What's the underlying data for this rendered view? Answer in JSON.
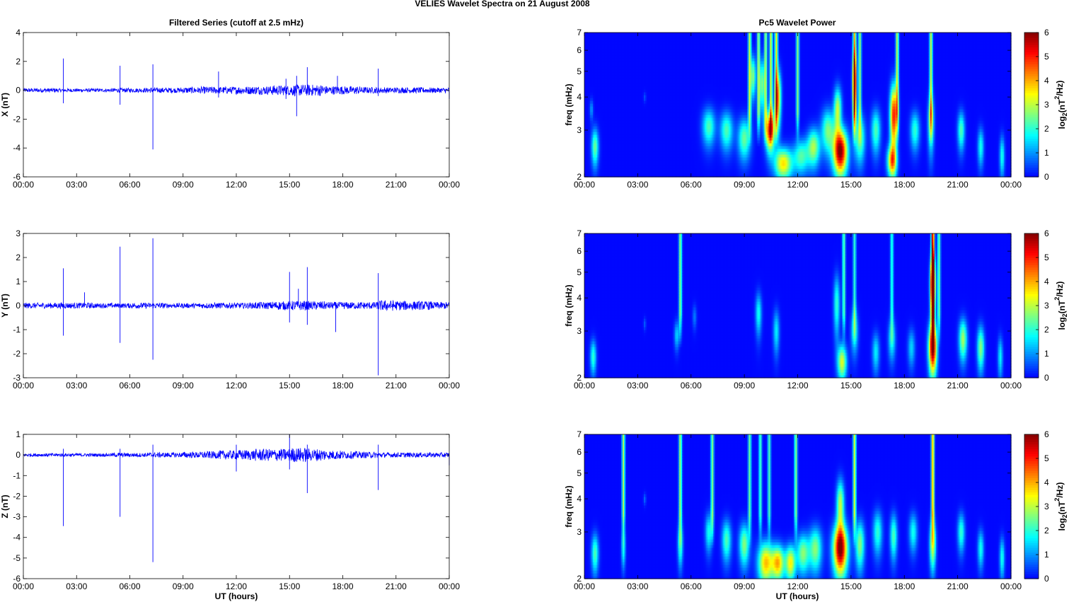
{
  "figure": {
    "title": "VELIES Wavelet Spectra on 21 August    2008",
    "left_title": "Filtered Series (cutoff at 2.5 mHz)",
    "right_title": "Pc5 Wavelet Power",
    "xlabel": "UT (hours)",
    "right_ylabel": "freq (mHz)",
    "colorbar_label": "log2(nT^2/Hz)",
    "colorbar_label_parts": {
      "pre": "log",
      "sub": "2",
      "mid": "(nT",
      "sup": "2",
      "post": "/Hz)"
    },
    "time_ticks": [
      "00:00",
      "03:00",
      "06:00",
      "09:00",
      "12:00",
      "15:00",
      "18:00",
      "21:00",
      "00:00"
    ],
    "freq_ticks": [
      "2",
      "3",
      "4",
      "5",
      "6",
      "7"
    ],
    "colorbar_ticks": [
      "0",
      "1",
      "2",
      "3",
      "4",
      "5",
      "6"
    ],
    "colors": {
      "line": "#0000ff",
      "background_power": "#00008f"
    }
  },
  "chart_data": [
    {
      "type": "line",
      "name": "X",
      "ylabel": "X (nT)",
      "xlim": [
        0,
        24
      ],
      "ylim": [
        -6,
        4
      ],
      "yticks": [
        "-6",
        "-4",
        "-2",
        "0",
        "2",
        "4"
      ],
      "background_amplitude": [
        0.15,
        0.15,
        0.12,
        0.12,
        0.12,
        0.15,
        0.15,
        0.18,
        0.18,
        0.22,
        0.25,
        0.25,
        0.28,
        0.3,
        0.35,
        0.4,
        0.4,
        0.3,
        0.28,
        0.22,
        0.2,
        0.2,
        0.2,
        0.18,
        0.2
      ],
      "spikes": [
        {
          "t": 2.25,
          "y": 2.2
        },
        {
          "t": 2.25,
          "y": -0.9
        },
        {
          "t": 5.45,
          "y": 1.7
        },
        {
          "t": 5.45,
          "y": -1.0
        },
        {
          "t": 7.3,
          "y": 1.8
        },
        {
          "t": 7.3,
          "y": -4.1
        },
        {
          "t": 11.0,
          "y": 1.3
        },
        {
          "t": 11.0,
          "y": -0.5
        },
        {
          "t": 14.8,
          "y": 0.8
        },
        {
          "t": 14.8,
          "y": -0.6
        },
        {
          "t": 15.4,
          "y": 1.0
        },
        {
          "t": 15.4,
          "y": -1.8
        },
        {
          "t": 16.0,
          "y": 1.6
        },
        {
          "t": 17.7,
          "y": 1.0
        },
        {
          "t": 20.0,
          "y": 1.5
        },
        {
          "t": 20.0,
          "y": -0.4
        },
        {
          "t": 24.0,
          "y": -0.6
        }
      ]
    },
    {
      "type": "line",
      "name": "Y",
      "ylabel": "Y (nT)",
      "xlim": [
        0,
        24
      ],
      "ylim": [
        -3,
        3
      ],
      "yticks": [
        "-3",
        "-2",
        "-1",
        "0",
        "1",
        "2",
        "3"
      ],
      "background_amplitude": [
        0.12,
        0.12,
        0.12,
        0.12,
        0.1,
        0.1,
        0.12,
        0.12,
        0.1,
        0.1,
        0.12,
        0.12,
        0.12,
        0.15,
        0.18,
        0.2,
        0.18,
        0.15,
        0.15,
        0.15,
        0.22,
        0.2,
        0.18,
        0.15,
        0.15
      ],
      "spikes": [
        {
          "t": 2.25,
          "y": 1.55
        },
        {
          "t": 2.25,
          "y": -1.25
        },
        {
          "t": 3.45,
          "y": 0.55
        },
        {
          "t": 5.45,
          "y": 2.45
        },
        {
          "t": 5.45,
          "y": -1.55
        },
        {
          "t": 7.3,
          "y": 2.8
        },
        {
          "t": 7.3,
          "y": -2.25
        },
        {
          "t": 15.0,
          "y": 1.4
        },
        {
          "t": 15.0,
          "y": -0.7
        },
        {
          "t": 15.5,
          "y": 0.7
        },
        {
          "t": 16.0,
          "y": 1.6
        },
        {
          "t": 16.0,
          "y": -0.8
        },
        {
          "t": 17.6,
          "y": -1.1
        },
        {
          "t": 20.0,
          "y": 1.35
        },
        {
          "t": 20.0,
          "y": -2.9
        }
      ]
    },
    {
      "type": "line",
      "name": "Z",
      "ylabel": "Z (nT)",
      "xlim": [
        0,
        24
      ],
      "ylim": [
        -6,
        1
      ],
      "yticks": [
        "-6",
        "-5",
        "-4",
        "-3",
        "-2",
        "-1",
        "0",
        "1"
      ],
      "background_amplitude": [
        0.08,
        0.08,
        0.08,
        0.08,
        0.08,
        0.1,
        0.1,
        0.12,
        0.12,
        0.15,
        0.18,
        0.22,
        0.25,
        0.3,
        0.3,
        0.35,
        0.3,
        0.22,
        0.18,
        0.15,
        0.12,
        0.12,
        0.12,
        0.12,
        0.12
      ],
      "spikes": [
        {
          "t": 2.25,
          "y": 0.3
        },
        {
          "t": 2.25,
          "y": -3.45
        },
        {
          "t": 5.45,
          "y": 0.3
        },
        {
          "t": 5.45,
          "y": -3.0
        },
        {
          "t": 7.3,
          "y": 0.5
        },
        {
          "t": 7.3,
          "y": -5.2
        },
        {
          "t": 12.0,
          "y": 0.5
        },
        {
          "t": 12.0,
          "y": -0.8
        },
        {
          "t": 15.0,
          "y": 1.0
        },
        {
          "t": 15.0,
          "y": -0.7
        },
        {
          "t": 16.0,
          "y": 0.5
        },
        {
          "t": 16.0,
          "y": -1.85
        },
        {
          "t": 20.0,
          "y": 0.5
        },
        {
          "t": 20.0,
          "y": -1.7
        },
        {
          "t": 24.0,
          "y": -0.5
        }
      ]
    },
    {
      "type": "heatmap",
      "name": "X wavelet power",
      "xlim": [
        0,
        24
      ],
      "ylim_mhz": [
        2,
        7
      ],
      "log_frequency_axis": true,
      "zlim": [
        0,
        6
      ],
      "colormap": "jet",
      "blobs": [
        {
          "t": 0.6,
          "f": 2.6,
          "w": 0.14,
          "h": 0.3,
          "a": 2.4
        },
        {
          "t": 0.4,
          "f": 3.6,
          "w": 0.07,
          "h": 0.22,
          "a": 1.0
        },
        {
          "t": 3.4,
          "f": 4.0,
          "w": 0.05,
          "h": 0.12,
          "a": 0.5
        },
        {
          "t": 7.0,
          "f": 3.1,
          "w": 0.25,
          "h": 0.35,
          "a": 2.2
        },
        {
          "t": 8.0,
          "f": 3.0,
          "w": 0.25,
          "h": 0.35,
          "a": 2.2
        },
        {
          "t": 9.0,
          "f": 2.8,
          "w": 0.25,
          "h": 0.35,
          "a": 2.4
        },
        {
          "t": 9.5,
          "f": 4.8,
          "w": 0.1,
          "h": 0.6,
          "a": 2.6
        },
        {
          "t": 10.0,
          "f": 4.5,
          "w": 0.1,
          "h": 0.7,
          "a": 2.5
        },
        {
          "t": 10.45,
          "f": 3.0,
          "w": 0.18,
          "h": 0.35,
          "a": 5.2
        },
        {
          "t": 10.9,
          "f": 4.0,
          "w": 0.12,
          "h": 0.7,
          "a": 3.5
        },
        {
          "t": 11.2,
          "f": 2.25,
          "w": 0.35,
          "h": 0.22,
          "a": 3.6
        },
        {
          "t": 12.2,
          "f": 2.4,
          "w": 0.3,
          "h": 0.25,
          "a": 2.2
        },
        {
          "t": 12.9,
          "f": 2.6,
          "w": 0.25,
          "h": 0.3,
          "a": 2.8
        },
        {
          "t": 13.7,
          "f": 3.0,
          "w": 0.25,
          "h": 0.4,
          "a": 2.5
        },
        {
          "t": 14.4,
          "f": 2.5,
          "w": 0.28,
          "h": 0.35,
          "a": 6.0
        },
        {
          "t": 14.25,
          "f": 3.6,
          "w": 0.15,
          "h": 0.5,
          "a": 3.0
        },
        {
          "t": 15.2,
          "f": 4.6,
          "w": 0.08,
          "h": 0.9,
          "a": 3.8
        },
        {
          "t": 15.5,
          "f": 2.8,
          "w": 0.2,
          "h": 0.4,
          "a": 2.5
        },
        {
          "t": 16.4,
          "f": 3.0,
          "w": 0.18,
          "h": 0.4,
          "a": 2.2
        },
        {
          "t": 17.4,
          "f": 3.4,
          "w": 0.14,
          "h": 0.7,
          "a": 5.0
        },
        {
          "t": 17.3,
          "f": 2.3,
          "w": 0.18,
          "h": 0.22,
          "a": 3.8
        },
        {
          "t": 18.6,
          "f": 3.0,
          "w": 0.18,
          "h": 0.35,
          "a": 2.0
        },
        {
          "t": 19.5,
          "f": 3.2,
          "w": 0.12,
          "h": 0.55,
          "a": 2.4
        },
        {
          "t": 21.2,
          "f": 3.0,
          "w": 0.14,
          "h": 0.35,
          "a": 2.2
        },
        {
          "t": 22.3,
          "f": 2.6,
          "w": 0.12,
          "h": 0.3,
          "a": 1.8
        },
        {
          "t": 23.5,
          "f": 2.4,
          "w": 0.1,
          "h": 0.3,
          "a": 1.8
        }
      ],
      "streaks": [
        {
          "t": 9.3,
          "a": 3.0
        },
        {
          "t": 9.8,
          "a": 2.8
        },
        {
          "t": 10.2,
          "a": 2.8
        },
        {
          "t": 10.5,
          "a": 3.2
        },
        {
          "t": 10.8,
          "a": 3.5
        },
        {
          "t": 12.0,
          "a": 2.6
        },
        {
          "t": 15.2,
          "a": 3.8
        },
        {
          "t": 15.5,
          "a": 2.6
        },
        {
          "t": 17.6,
          "a": 3.0
        },
        {
          "t": 19.5,
          "a": 3.0
        }
      ]
    },
    {
      "type": "heatmap",
      "name": "Y wavelet power",
      "xlim": [
        0,
        24
      ],
      "ylim_mhz": [
        2,
        7
      ],
      "log_frequency_axis": true,
      "zlim": [
        0,
        6
      ],
      "colormap": "jet",
      "blobs": [
        {
          "t": 0.5,
          "f": 2.4,
          "w": 0.12,
          "h": 0.25,
          "a": 2.0
        },
        {
          "t": 3.4,
          "f": 3.2,
          "w": 0.05,
          "h": 0.12,
          "a": 0.6
        },
        {
          "t": 5.2,
          "f": 2.9,
          "w": 0.1,
          "h": 0.25,
          "a": 1.4
        },
        {
          "t": 6.2,
          "f": 3.4,
          "w": 0.08,
          "h": 0.25,
          "a": 0.8
        },
        {
          "t": 9.8,
          "f": 3.5,
          "w": 0.12,
          "h": 0.45,
          "a": 1.8
        },
        {
          "t": 10.8,
          "f": 3.0,
          "w": 0.12,
          "h": 0.4,
          "a": 1.6
        },
        {
          "t": 14.2,
          "f": 3.8,
          "w": 0.12,
          "h": 0.7,
          "a": 2.0
        },
        {
          "t": 14.5,
          "f": 2.3,
          "w": 0.18,
          "h": 0.25,
          "a": 3.2
        },
        {
          "t": 15.2,
          "f": 3.0,
          "w": 0.14,
          "h": 0.4,
          "a": 1.8
        },
        {
          "t": 16.4,
          "f": 2.5,
          "w": 0.14,
          "h": 0.3,
          "a": 1.6
        },
        {
          "t": 17.3,
          "f": 2.8,
          "w": 0.14,
          "h": 0.35,
          "a": 1.8
        },
        {
          "t": 18.4,
          "f": 2.6,
          "w": 0.14,
          "h": 0.3,
          "a": 1.4
        },
        {
          "t": 19.6,
          "f": 2.6,
          "w": 0.16,
          "h": 0.4,
          "a": 6.0
        },
        {
          "t": 19.6,
          "f": 4.5,
          "w": 0.1,
          "h": 0.8,
          "a": 5.5
        },
        {
          "t": 21.3,
          "f": 2.8,
          "w": 0.16,
          "h": 0.35,
          "a": 2.8
        },
        {
          "t": 22.3,
          "f": 2.6,
          "w": 0.14,
          "h": 0.35,
          "a": 2.6
        },
        {
          "t": 23.4,
          "f": 2.4,
          "w": 0.1,
          "h": 0.3,
          "a": 1.6
        }
      ],
      "streaks": [
        {
          "t": 5.4,
          "a": 2.6
        },
        {
          "t": 14.6,
          "a": 2.4
        },
        {
          "t": 15.2,
          "a": 2.0
        },
        {
          "t": 17.3,
          "a": 2.0
        },
        {
          "t": 19.6,
          "a": 5.8
        },
        {
          "t": 19.95,
          "a": 2.4
        }
      ]
    },
    {
      "type": "heatmap",
      "name": "Z wavelet power",
      "xlim": [
        0,
        24
      ],
      "ylim_mhz": [
        2,
        7
      ],
      "log_frequency_axis": true,
      "zlim": [
        0,
        6
      ],
      "colormap": "jet",
      "blobs": [
        {
          "t": 0.6,
          "f": 2.5,
          "w": 0.14,
          "h": 0.3,
          "a": 2.2
        },
        {
          "t": 2.2,
          "f": 2.6,
          "w": 0.08,
          "h": 0.3,
          "a": 1.8
        },
        {
          "t": 3.4,
          "f": 4.0,
          "w": 0.05,
          "h": 0.14,
          "a": 0.7
        },
        {
          "t": 5.4,
          "f": 2.7,
          "w": 0.1,
          "h": 0.35,
          "a": 2.2
        },
        {
          "t": 7.0,
          "f": 3.0,
          "w": 0.14,
          "h": 0.35,
          "a": 1.8
        },
        {
          "t": 8.0,
          "f": 2.8,
          "w": 0.18,
          "h": 0.35,
          "a": 2.2
        },
        {
          "t": 9.0,
          "f": 2.7,
          "w": 0.2,
          "h": 0.35,
          "a": 2.6
        },
        {
          "t": 10.2,
          "f": 2.3,
          "w": 0.3,
          "h": 0.3,
          "a": 3.8
        },
        {
          "t": 10.9,
          "f": 2.3,
          "w": 0.25,
          "h": 0.25,
          "a": 3.8
        },
        {
          "t": 11.6,
          "f": 2.3,
          "w": 0.2,
          "h": 0.25,
          "a": 3.4
        },
        {
          "t": 12.3,
          "f": 2.5,
          "w": 0.25,
          "h": 0.3,
          "a": 2.6
        },
        {
          "t": 13.0,
          "f": 2.6,
          "w": 0.25,
          "h": 0.35,
          "a": 2.6
        },
        {
          "t": 14.4,
          "f": 2.6,
          "w": 0.28,
          "h": 0.4,
          "a": 6.0
        },
        {
          "t": 14.4,
          "f": 3.8,
          "w": 0.15,
          "h": 0.6,
          "a": 3.0
        },
        {
          "t": 15.5,
          "f": 2.7,
          "w": 0.18,
          "h": 0.4,
          "a": 2.6
        },
        {
          "t": 16.5,
          "f": 3.0,
          "w": 0.18,
          "h": 0.4,
          "a": 2.0
        },
        {
          "t": 17.4,
          "f": 2.9,
          "w": 0.14,
          "h": 0.4,
          "a": 2.2
        },
        {
          "t": 18.5,
          "f": 3.0,
          "w": 0.16,
          "h": 0.35,
          "a": 1.8
        },
        {
          "t": 19.6,
          "f": 2.7,
          "w": 0.12,
          "h": 0.4,
          "a": 3.2
        },
        {
          "t": 21.2,
          "f": 3.0,
          "w": 0.14,
          "h": 0.35,
          "a": 2.0
        },
        {
          "t": 22.3,
          "f": 2.6,
          "w": 0.12,
          "h": 0.3,
          "a": 1.8
        },
        {
          "t": 23.5,
          "f": 2.4,
          "w": 0.1,
          "h": 0.3,
          "a": 1.8
        }
      ],
      "streaks": [
        {
          "t": 2.2,
          "a": 2.8
        },
        {
          "t": 5.4,
          "a": 2.8
        },
        {
          "t": 7.2,
          "a": 2.6
        },
        {
          "t": 9.3,
          "a": 2.4
        },
        {
          "t": 9.9,
          "a": 2.2
        },
        {
          "t": 10.4,
          "a": 2.2
        },
        {
          "t": 11.9,
          "a": 2.6
        },
        {
          "t": 15.2,
          "a": 3.2
        },
        {
          "t": 19.6,
          "a": 4.0
        }
      ]
    }
  ]
}
